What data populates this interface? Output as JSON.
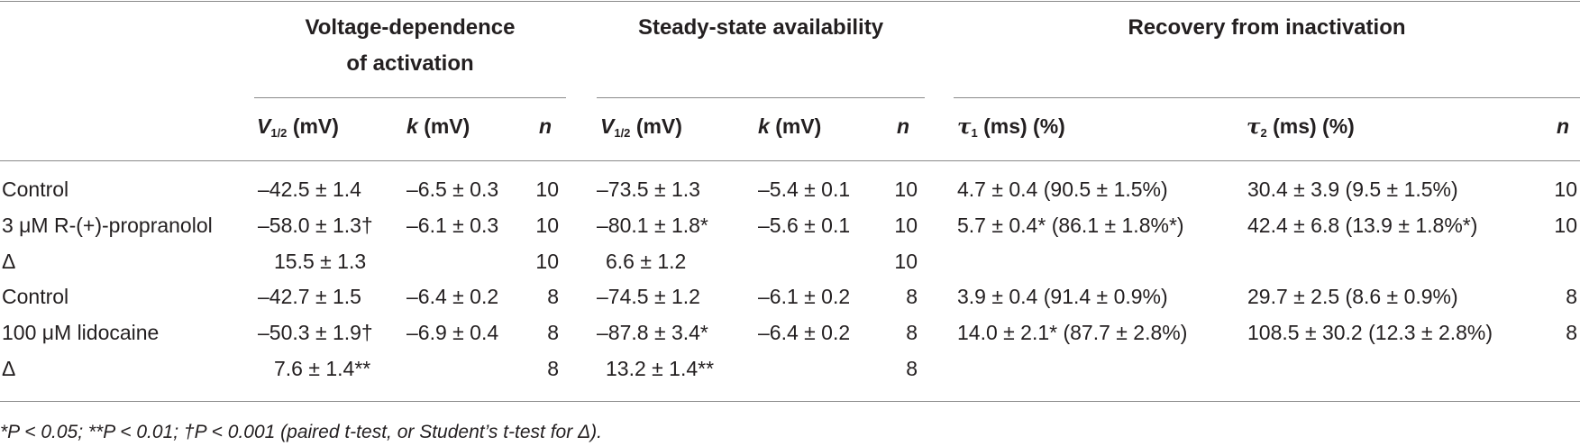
{
  "table": {
    "group_headers": {
      "activation_line1": "Voltage-dependence",
      "activation_line2": "of activation",
      "availability": "Steady-state availability",
      "recovery": "Recovery from inactivation"
    },
    "columns": {
      "v_half_sym": "V",
      "v_half_sub": "1/2",
      "v_half_unit": "(mV)",
      "k_sym": "k",
      "k_unit": "(mV)",
      "n": "n",
      "tau_sym": "τ",
      "tau1_sub": "1",
      "tau2_sub": "2",
      "tau_unit": "(ms) (%)"
    },
    "rows": [
      {
        "label": "Control",
        "act_v": "–42.5 ± 1.4",
        "act_k": "–6.5 ± 0.3",
        "act_n": "10",
        "ssa_v": "–73.5 ± 1.3",
        "ssa_k": "–5.4 ± 0.1",
        "ssa_n": "10",
        "tau1": "4.7 ± 0.4 (90.5 ± 1.5%)",
        "tau2": "30.4 ± 3.9 (9.5 ± 1.5%)",
        "rec_n": "10"
      },
      {
        "label": "3 μM R-(+)-propranolol",
        "act_v": "–58.0 ± 1.3†",
        "act_k": "–6.1 ± 0.3",
        "act_n": "10",
        "ssa_v": "–80.1 ± 1.8*",
        "ssa_k": "–5.6 ± 0.1",
        "ssa_n": "10",
        "tau1": "5.7 ± 0.4* (86.1 ± 1.8%*)",
        "tau2": "42.4 ± 6.8 (13.9 ± 1.8%*)",
        "rec_n": "10"
      },
      {
        "label": "Δ",
        "act_v": "15.5 ± 1.3",
        "act_k": "",
        "act_n": "10",
        "ssa_v": "6.6 ± 1.2",
        "ssa_k": "",
        "ssa_n": "10",
        "tau1": "",
        "tau2": "",
        "rec_n": ""
      },
      {
        "label": "Control",
        "act_v": "–42.7 ± 1.5",
        "act_k": "–6.4 ± 0.2",
        "act_n": "8",
        "ssa_v": "–74.5 ± 1.2",
        "ssa_k": "–6.1 ± 0.2",
        "ssa_n": "8",
        "tau1": "3.9 ± 0.4 (91.4 ± 0.9%)",
        "tau2": "29.7 ± 2.5 (8.6 ± 0.9%)",
        "rec_n": "8"
      },
      {
        "label": "100 μM lidocaine",
        "act_v": "–50.3 ± 1.9†",
        "act_k": "–6.9 ± 0.4",
        "act_n": "8",
        "ssa_v": "–87.8 ± 3.4*",
        "ssa_k": "–6.4 ± 0.2",
        "ssa_n": "8",
        "tau1": "14.0 ± 2.1* (87.7 ± 2.8%)",
        "tau2": "108.5 ± 30.2 (12.3 ± 2.8%)",
        "rec_n": "8"
      },
      {
        "label": "Δ",
        "act_v": "7.6 ± 1.4**",
        "act_k": "",
        "act_n": "8",
        "ssa_v": "13.2 ± 1.4**",
        "ssa_k": "",
        "ssa_n": "8",
        "tau1": "",
        "tau2": "",
        "rec_n": ""
      }
    ],
    "footnote": "*P < 0.05; **P < 0.01; †P < 0.001 (paired t-test, or Student’s t-test for Δ)."
  }
}
